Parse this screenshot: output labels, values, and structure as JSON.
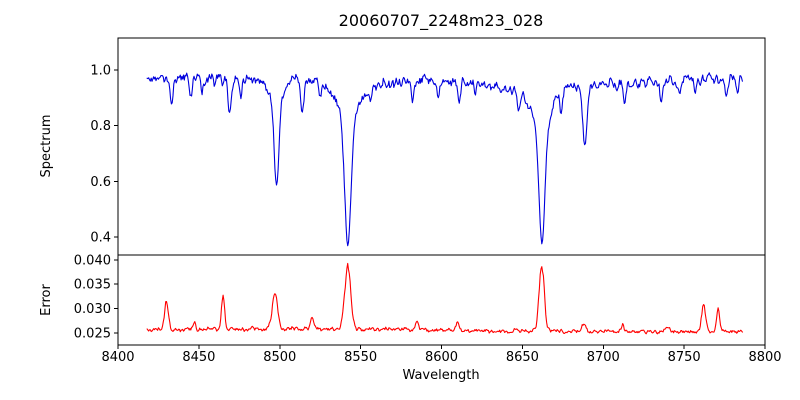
{
  "chart_data": {
    "type": "line",
    "title": "20060707_2248m23_028",
    "xlabel": "Wavelength",
    "x_range": [
      8400,
      8800
    ],
    "x_ticks": [
      8400,
      8450,
      8500,
      8550,
      8600,
      8650,
      8700,
      8750,
      8800
    ],
    "x_tick_decimals": 0,
    "x_data_range": [
      8418,
      8786
    ],
    "sample_step": 0.5,
    "seed": 20060707,
    "grid": false,
    "legend": "none",
    "panels": [
      {
        "name": "spectrum",
        "ylabel": "Spectrum",
        "color": "#0000dd",
        "y_ticks": [
          0.4,
          0.6,
          0.8,
          1.0
        ],
        "y_tick_decimals": 1,
        "y_range": [
          0.335,
          1.115
        ],
        "continuum": 0.965,
        "continuum_wiggle": 0.012,
        "noise_amplitude": 0.028,
        "absorption_lines": [
          {
            "center": 8498.0,
            "core_depth": 0.28,
            "core_sigma": 1.4,
            "wing_depth": 0.12,
            "wing_gamma": 4.0
          },
          {
            "center": 8542.1,
            "core_depth": 0.42,
            "core_sigma": 1.9,
            "wing_depth": 0.17,
            "wing_gamma": 7.0
          },
          {
            "center": 8662.1,
            "core_depth": 0.4,
            "core_sigma": 1.8,
            "wing_depth": 0.18,
            "wing_gamma": 6.5
          },
          {
            "center": 8688.6,
            "core_depth": 0.19,
            "core_sigma": 1.2,
            "wing_depth": 0.03,
            "wing_gamma": 3.0
          }
        ],
        "minor_dips": [
          [
            8433,
            0.1,
            0.9
          ],
          [
            8445,
            0.07,
            0.8
          ],
          [
            8452,
            0.06,
            0.7
          ],
          [
            8469,
            0.13,
            1.0
          ],
          [
            8476,
            0.06,
            0.7
          ],
          [
            8514,
            0.11,
            1.0
          ],
          [
            8525,
            0.05,
            0.8
          ],
          [
            8556,
            0.05,
            0.8
          ],
          [
            8582,
            0.06,
            0.9
          ],
          [
            8598,
            0.05,
            0.7
          ],
          [
            8611,
            0.06,
            0.8
          ],
          [
            8621,
            0.05,
            0.7
          ],
          [
            8648,
            0.07,
            0.9
          ],
          [
            8674,
            0.07,
            0.8
          ],
          [
            8713,
            0.06,
            0.9
          ],
          [
            8736,
            0.06,
            0.8
          ],
          [
            8747,
            0.05,
            0.7
          ],
          [
            8757,
            0.06,
            0.8
          ],
          [
            8776,
            0.09,
            0.9
          ],
          [
            8783,
            0.06,
            0.7
          ]
        ]
      },
      {
        "name": "error",
        "ylabel": "Error",
        "color": "#ff0000",
        "y_ticks": [
          0.025,
          0.03,
          0.035,
          0.04
        ],
        "y_tick_decimals": 3,
        "y_range": [
          0.0225,
          0.041
        ],
        "baseline": 0.0255,
        "baseline_wiggle": 0.0003,
        "noise_amplitude": 0.0006,
        "spikes": [
          [
            8430,
            0.006,
            1.2
          ],
          [
            8465,
            0.0068,
            1.0
          ],
          [
            8497,
            0.0072,
            1.6
          ],
          [
            8542,
            0.0132,
            1.8
          ],
          [
            8662,
            0.0132,
            1.6
          ],
          [
            8762,
            0.0058,
            1.2
          ],
          [
            8771,
            0.0046,
            1.0
          ]
        ],
        "minor_bumps": [
          [
            8447,
            0.0015,
            1.0
          ],
          [
            8520,
            0.0018,
            1.2
          ],
          [
            8585,
            0.0014,
            1.0
          ],
          [
            8610,
            0.0012,
            1.0
          ],
          [
            8688,
            0.0018,
            1.2
          ],
          [
            8712,
            0.0014,
            1.0
          ],
          [
            8740,
            0.0012,
            1.0
          ]
        ]
      }
    ]
  }
}
